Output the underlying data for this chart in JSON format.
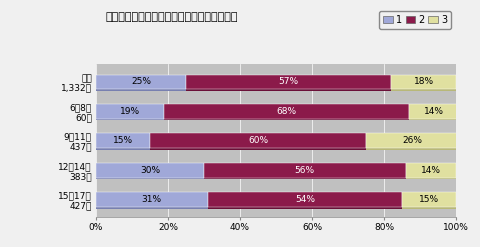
{
  "title": "言いたいことをがまんすることがありますか",
  "categories": [
    "全体\n1,332人",
    "6〜8歳\n60人",
    "9〜11歳\n437人",
    "12〜14歳\n383人",
    "15〜17歳\n427人"
  ],
  "series1": [
    25,
    19,
    15,
    30,
    31
  ],
  "series2": [
    57,
    68,
    60,
    56,
    54
  ],
  "series3": [
    18,
    14,
    26,
    14,
    15
  ],
  "color1": "#a0a8d8",
  "color2": "#8b1a4a",
  "color3": "#e0e0a0",
  "shadow1": "#7880b0",
  "shadow2": "#6a1038",
  "shadow3": "#b8b878",
  "legend_labels": [
    "1",
    "2",
    "3"
  ],
  "outer_bg": "#f0f0f0",
  "plot_bg": "#c0c0c0",
  "bar_height": 0.5,
  "xlabel_ticks": [
    0,
    20,
    40,
    60,
    80,
    100
  ],
  "xlabel_labels": [
    "0%",
    "20%",
    "40%",
    "60%",
    "80%",
    "100%"
  ],
  "title_fontsize": 8,
  "label_fontsize": 6.5,
  "tick_fontsize": 6.5,
  "legend_fontsize": 7
}
